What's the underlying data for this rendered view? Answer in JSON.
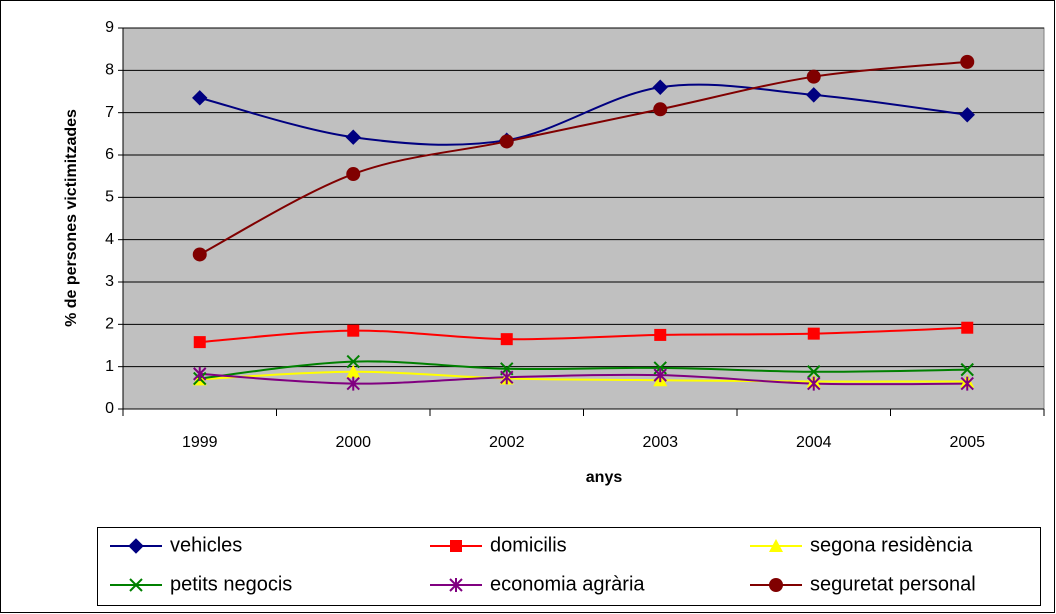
{
  "chart_data": {
    "type": "line",
    "x_label": "anys",
    "y_label": "% de persones victimitzades",
    "categories": [
      "1999",
      "2000",
      "2002",
      "2003",
      "2004",
      "2005"
    ],
    "ylim": [
      0,
      9
    ],
    "yticks": [
      0,
      1,
      2,
      3,
      4,
      5,
      6,
      7,
      8,
      9
    ],
    "grid": true,
    "smooth": true,
    "legend": "bottom",
    "series": [
      {
        "name": "vehicles",
        "color": "#000080",
        "marker": "diamond",
        "values": [
          7.35,
          6.42,
          6.35,
          7.6,
          7.42,
          6.95
        ]
      },
      {
        "name": "domicilis",
        "color": "#ff0000",
        "marker": "square",
        "values": [
          1.58,
          1.85,
          1.65,
          1.75,
          1.78,
          1.92
        ]
      },
      {
        "name": "segona residència",
        "color": "#ffff00",
        "marker": "triangle",
        "values": [
          0.7,
          0.88,
          0.72,
          0.68,
          0.65,
          0.65
        ]
      },
      {
        "name": "petits negocis",
        "color": "#008000",
        "marker": "x",
        "values": [
          0.72,
          1.12,
          0.95,
          0.97,
          0.88,
          0.93
        ]
      },
      {
        "name": "economia agrària",
        "color": "#800080",
        "marker": "star",
        "values": [
          0.83,
          0.6,
          0.75,
          0.8,
          0.6,
          0.6
        ]
      },
      {
        "name": "seguretat personal",
        "color": "#800000",
        "marker": "circle",
        "values": [
          3.65,
          5.55,
          6.32,
          7.08,
          7.85,
          8.2
        ]
      }
    ]
  }
}
